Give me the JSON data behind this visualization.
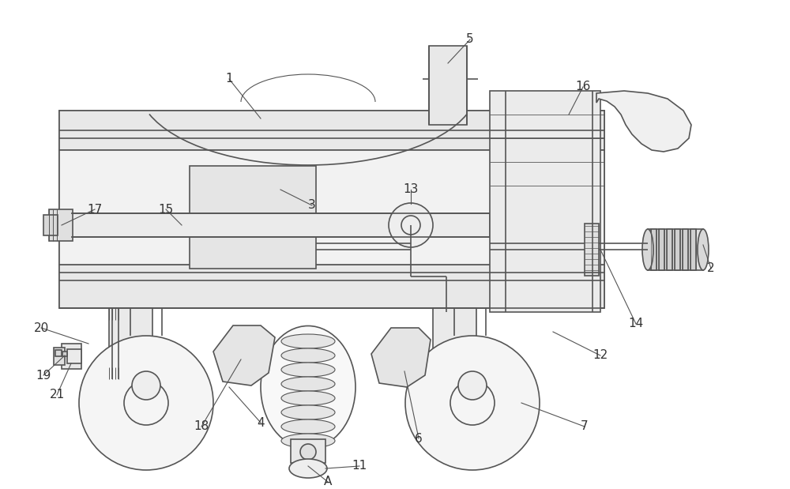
{
  "bg_color": "#ffffff",
  "lc": "#555555",
  "lw": 1.2,
  "fig_w": 10.0,
  "fig_h": 6.19
}
